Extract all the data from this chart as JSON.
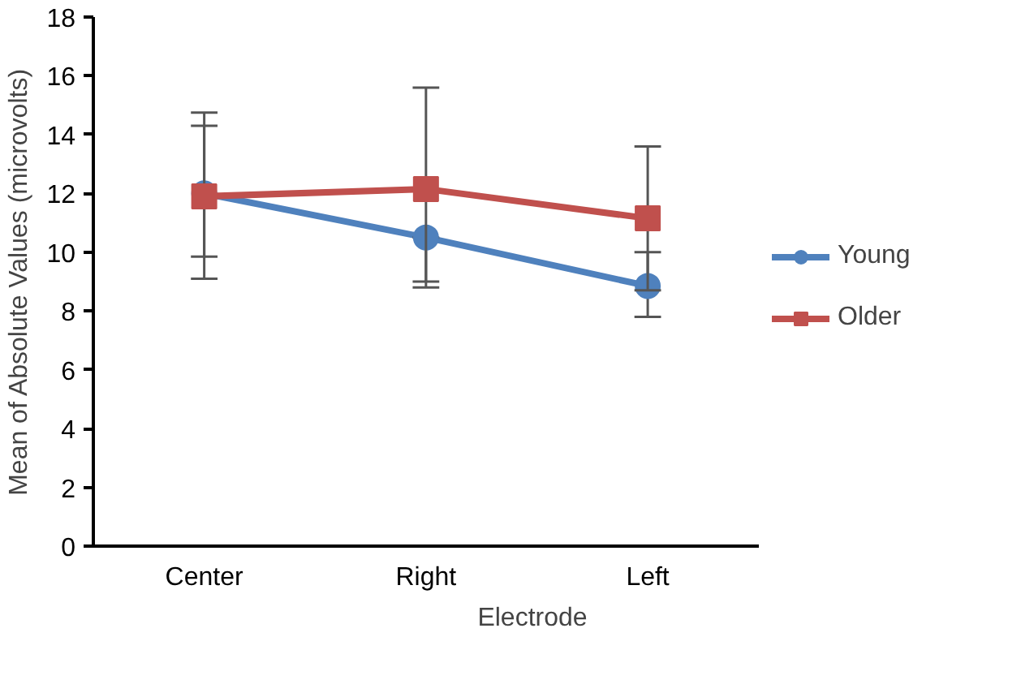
{
  "chart_data": {
    "type": "line",
    "xlabel": "Electrode",
    "ylabel": "Mean of Absolute Values (microvolts)",
    "categories": [
      "Center",
      "Right",
      "Left"
    ],
    "series": [
      {
        "name": "Young",
        "color": "#4f81bd",
        "marker": "circle",
        "values": [
          12.0,
          10.5,
          8.85
        ],
        "errors": [
          [
            9.85,
            14.3
          ],
          [
            9.0,
            10.5
          ],
          [
            7.8,
            10.0
          ]
        ]
      },
      {
        "name": "Older",
        "color": "#c0504d",
        "marker": "square",
        "values": [
          11.9,
          12.15,
          11.15
        ],
        "errors": [
          [
            9.1,
            14.75
          ],
          [
            8.8,
            15.6
          ],
          [
            8.7,
            13.6
          ]
        ]
      }
    ],
    "ylim": [
      0,
      18
    ],
    "yticks": [
      0,
      2,
      4,
      6,
      8,
      10,
      12,
      14,
      16,
      18
    ],
    "grid": false,
    "legend": "right"
  }
}
